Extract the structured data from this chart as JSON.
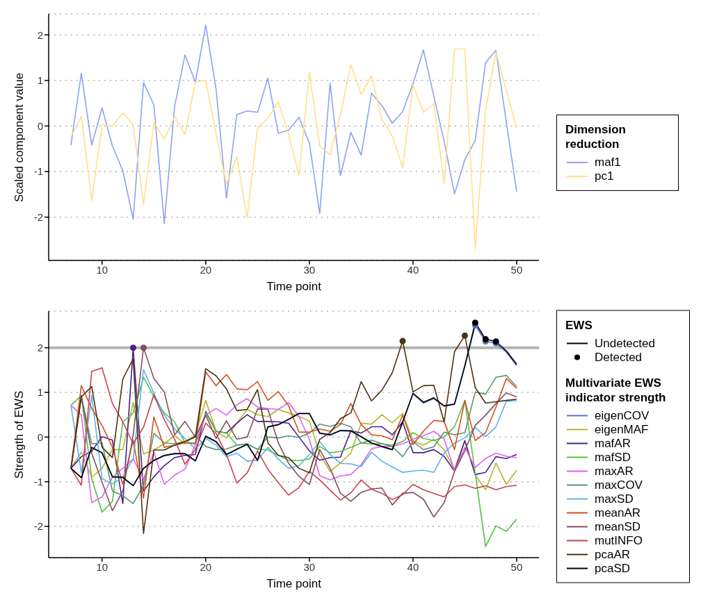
{
  "chart_data": [
    {
      "type": "line",
      "xlabel": "Time point",
      "ylabel": "Scaled component value",
      "legend_title": "Dimension reduction",
      "legend": "right",
      "grid": "y",
      "line_style": "solid",
      "x": [
        7,
        8,
        9,
        10,
        11,
        12,
        13,
        14,
        15,
        16,
        17,
        18,
        19,
        20,
        21,
        22,
        23,
        24,
        25,
        26,
        27,
        28,
        29,
        30,
        31,
        32,
        33,
        34,
        35,
        36,
        37,
        38,
        39,
        40,
        41,
        42,
        43,
        44,
        45,
        46,
        47,
        48,
        49,
        50
      ],
      "xlim": [
        4.85,
        52.15
      ],
      "xticks": [
        10,
        20,
        30,
        40,
        50
      ],
      "ylim": [
        -2.95,
        2.46
      ],
      "yticks": [
        -2,
        -1,
        0,
        1,
        2
      ],
      "series": [
        {
          "name": "maf1",
          "color": "#8da0f5",
          "values": [
            -0.42,
            1.16,
            -0.42,
            0.4,
            -0.44,
            -0.98,
            -2.05,
            0.95,
            0.46,
            -2.14,
            0.43,
            1.56,
            0.96,
            2.21,
            0.81,
            -1.58,
            0.25,
            0.33,
            0.3,
            1.05,
            -0.16,
            -0.09,
            0.19,
            -0.37,
            -1.92,
            0.94,
            -1.09,
            -0.14,
            -0.64,
            0.72,
            0.45,
            0.06,
            0.32,
            0.93,
            1.67,
            0.66,
            -0.33,
            -1.49,
            -0.74,
            -0.32,
            1.39,
            1.66,
            0.08,
            -1.44
          ]
        },
        {
          "name": "pc1",
          "color": "#ffe08a",
          "values": [
            -0.24,
            0.21,
            -1.64,
            0.03,
            0.0,
            0.29,
            0.03,
            -1.72,
            0.08,
            -0.29,
            0.21,
            -0.18,
            0.97,
            1.0,
            -0.18,
            -1.28,
            -0.67,
            -2.02,
            -0.04,
            0.17,
            0.53,
            -0.18,
            -1.09,
            1.17,
            -0.44,
            -0.63,
            0.25,
            1.35,
            0.69,
            1.1,
            0.14,
            -0.22,
            -0.91,
            0.91,
            0.3,
            0.49,
            -1.26,
            1.69,
            1.69,
            -2.7,
            0.34,
            1.62,
            0.78,
            -0.05
          ]
        }
      ]
    },
    {
      "type": "line",
      "xlabel": "Time point",
      "ylabel": "Strength of EWS",
      "legend_title": "Multivariate EWS indicator strength",
      "legend": "right",
      "grid": "y",
      "line_style": "solid",
      "annotations": [
        "EWS",
        "Undetected"
      ],
      "ref_lines": [
        {
          "axis": "y",
          "value": 2,
          "color": "#b3b3b3"
        }
      ],
      "x": [
        7,
        8,
        9,
        10,
        11,
        12,
        13,
        14,
        15,
        16,
        17,
        18,
        19,
        20,
        21,
        22,
        23,
        24,
        25,
        26,
        27,
        28,
        29,
        30,
        31,
        32,
        33,
        34,
        35,
        36,
        37,
        38,
        39,
        40,
        41,
        42,
        43,
        44,
        45,
        46,
        47,
        48,
        49,
        50
      ],
      "xlim": [
        4.85,
        52.15
      ],
      "xticks": [
        10,
        20,
        30,
        40,
        50
      ],
      "ylim": [
        -2.7,
        2.82
      ],
      "yticks": [
        -2,
        -1,
        0,
        1,
        2
      ],
      "series": [
        {
          "name": "eigenCOV",
          "color": "#5a72c8",
          "values": [
            -0.7,
            -0.91,
            -0.24,
            -0.36,
            -0.89,
            -0.91,
            -1.09,
            -0.71,
            -0.53,
            -0.42,
            -0.38,
            -0.38,
            -0.54,
            0.01,
            -0.11,
            -0.4,
            -0.28,
            -0.17,
            -0.53,
            0.22,
            0.27,
            0.39,
            0.52,
            0.52,
            0.08,
            0.04,
            0.14,
            0.13,
            0.0,
            -0.14,
            -0.22,
            -0.29,
            0.33,
            0.97,
            0.76,
            0.86,
            0.69,
            0.73,
            1.58,
            2.5,
            2.14,
            2.1,
            1.9,
            1.6
          ]
        },
        {
          "name": "eigenMAF",
          "color": "#b5b52a",
          "values": [
            -0.7,
            -0.34,
            -0.9,
            -0.7,
            -0.28,
            -0.28,
            0.77,
            -0.38,
            -0.29,
            -0.15,
            0.03,
            -0.15,
            0.05,
            0.82,
            0.13,
            -0.02,
            0.31,
            0.62,
            0.5,
            0.46,
            0.62,
            0.54,
            0.46,
            0.36,
            -0.39,
            -0.77,
            -0.58,
            -0.36,
            0.31,
            0.29,
            0.5,
            0.32,
            0.53,
            -0.08,
            -0.18,
            -0.05,
            -0.29,
            -0.72,
            -0.08,
            -0.85,
            -1.18,
            -0.58,
            -1.06,
            -0.74
          ]
        },
        {
          "name": "mafAR",
          "color": "#4a1e8c",
          "values": [
            -0.7,
            -0.44,
            -0.32,
            0.01,
            -0.07,
            -1.49,
            2.0,
            -1.21,
            -0.89,
            -0.64,
            -0.46,
            -0.41,
            -0.39,
            0.57,
            0.13,
            0.09,
            0.31,
            0.5,
            0.35,
            0.35,
            0.34,
            0.31,
            0.0,
            -0.31,
            -0.52,
            -0.46,
            -0.45,
            0.14,
            0.09,
            0.23,
            0.23,
            0.05,
            0.34,
            -0.35,
            -0.35,
            -0.28,
            -0.43,
            -0.76,
            -0.08,
            -0.84,
            -0.79,
            -0.44,
            -0.48,
            -0.39
          ]
        },
        {
          "name": "mafSD",
          "color": "#55c040",
          "values": [
            0.71,
            0.93,
            -0.93,
            -1.68,
            -1.44,
            0.34,
            0.54,
            1.34,
            0.9,
            0.54,
            0.34,
            -0.13,
            -0.13,
            0.54,
            0.13,
            0.1,
            -0.18,
            -0.16,
            -0.27,
            -0.29,
            -0.41,
            -0.52,
            -0.53,
            -0.49,
            -0.21,
            -0.35,
            -0.32,
            -0.23,
            -0.13,
            -0.16,
            -0.15,
            -0.18,
            -0.1,
            0.1,
            -0.03,
            -0.08,
            0.0,
            0.23,
            0.82,
            -0.81,
            -2.45,
            -1.99,
            -2.11,
            -1.84
          ]
        },
        {
          "name": "maxAR",
          "color": "#e060f0",
          "values": [
            0.71,
            0.49,
            -1.47,
            -1.34,
            -0.9,
            -0.7,
            -0.49,
            -0.94,
            -0.34,
            -1.06,
            -0.85,
            -0.72,
            -0.18,
            0.49,
            0.64,
            0.49,
            0.72,
            0.86,
            0.67,
            0.64,
            0.62,
            0.77,
            0.46,
            -0.05,
            -0.87,
            -0.96,
            -0.87,
            -0.84,
            -0.62,
            -0.26,
            -0.21,
            -0.21,
            -0.15,
            -0.05,
            0.03,
            0.13,
            -0.04,
            -0.75,
            -0.23,
            -0.68,
            -0.48,
            -0.36,
            -0.43,
            -0.46
          ]
        },
        {
          "name": "maxCOV",
          "color": "#5a9670",
          "values": [
            -0.7,
            0.9,
            -0.15,
            -0.13,
            -1.21,
            -1.31,
            -1.49,
            -1.08,
            0.08,
            -0.13,
            -0.15,
            -0.1,
            0.03,
            -0.21,
            -0.28,
            -0.27,
            -0.18,
            -0.15,
            -0.28,
            0.0,
            -0.02,
            0.03,
            -0.01,
            0.09,
            0.29,
            0.24,
            0.31,
            0.23,
            -0.14,
            -0.07,
            -0.15,
            -0.21,
            -0.44,
            -0.1,
            -0.28,
            -0.22,
            0.11,
            0.05,
            0.1,
            1.01,
            0.96,
            1.34,
            1.38,
            1.13
          ]
        },
        {
          "name": "maxSD",
          "color": "#5ab4ea",
          "values": [
            0.71,
            -0.8,
            0.93,
            -0.93,
            -1.05,
            -0.89,
            -0.49,
            1.51,
            0.98,
            0.49,
            0.18,
            -0.03,
            -0.27,
            -0.03,
            -0.18,
            -0.44,
            -0.36,
            -0.54,
            -0.52,
            -0.23,
            -0.49,
            -0.7,
            -0.64,
            -0.39,
            -0.1,
            -0.39,
            -0.59,
            -0.6,
            -0.66,
            -0.34,
            -0.54,
            -0.67,
            -0.79,
            -0.76,
            -0.74,
            -0.79,
            -0.36,
            -0.13,
            -0.02,
            0.21,
            0.01,
            0.23,
            0.8,
            0.82
          ]
        },
        {
          "name": "meanAR",
          "color": "#d45020",
          "values": [
            -0.7,
            1.15,
            0.64,
            0.26,
            -0.23,
            -1.06,
            -0.07,
            -1.37,
            0.45,
            -0.23,
            -0.18,
            -0.13,
            -0.15,
            1.46,
            1.15,
            1.4,
            1.08,
            1.06,
            1.24,
            0.82,
            1.02,
            0.7,
            0.11,
            0.11,
            0.18,
            0.13,
            0.28,
            0.75,
            0.28,
            0.05,
            0.03,
            -0.06,
            0.49,
            -0.17,
            0.13,
            0.37,
            0.35,
            -0.28,
            0.82,
            -0.08,
            0.1,
            0.67,
            1.31,
            1.09
          ]
        },
        {
          "name": "meanSD",
          "color": "#80505c",
          "values": [
            -0.7,
            0.93,
            -0.36,
            -1.01,
            -1.65,
            -1.21,
            0.03,
            2.0,
            1.31,
            1.01,
            0.05,
            0.35,
            0.0,
            0.49,
            -0.03,
            0.36,
            -0.05,
            0.0,
            0.63,
            0.62,
            -0.13,
            -0.59,
            -0.88,
            -1.06,
            -0.28,
            -0.7,
            -1.26,
            -1.44,
            -1.24,
            -1.16,
            -1.14,
            -1.52,
            -1.26,
            -1.24,
            -1.39,
            -1.79,
            -1.47,
            -0.77,
            -0.31,
            0.26,
            0.49,
            0.75,
            0.99,
            0.9
          ]
        },
        {
          "name": "mutINFO",
          "color": "#c84050",
          "values": [
            -0.7,
            -1.08,
            1.47,
            1.55,
            0.75,
            0.34,
            -0.15,
            0.22,
            0.95,
            0.39,
            -0.05,
            -0.61,
            -0.28,
            0.31,
            0.08,
            -0.39,
            -1.03,
            -0.8,
            -0.31,
            -0.72,
            -1.02,
            -1.3,
            -1.13,
            -0.77,
            -0.96,
            -1.19,
            -1.41,
            -1.25,
            -0.96,
            -1.17,
            -1.26,
            -1.4,
            -1.29,
            -1.06,
            -1.18,
            -1.26,
            -1.34,
            -1.11,
            -1.07,
            -1.15,
            -1.09,
            -1.18,
            -1.11,
            -1.08
          ]
        },
        {
          "name": "pcaAR",
          "color": "#4a3212",
          "values": [
            -0.7,
            0.9,
            1.13,
            -0.23,
            -0.46,
            1.3,
            1.75,
            -2.16,
            -0.29,
            -0.29,
            -0.18,
            -0.1,
            0.0,
            1.53,
            1.37,
            1.08,
            0.59,
            0.62,
            1.06,
            -0.13,
            -0.41,
            -0.46,
            -0.7,
            -0.8,
            -0.05,
            0.1,
            0.41,
            0.54,
            1.24,
            0.81,
            1.05,
            1.44,
            2.15,
            1.01,
            1.15,
            1.16,
            0.34,
            1.91,
            2.27,
            1.11,
            0.76,
            0.79,
            0.82,
            0.85
          ]
        },
        {
          "name": "pcaSD",
          "color": "#000000",
          "values": [
            -0.7,
            -0.91,
            -0.23,
            -0.35,
            -0.89,
            -0.9,
            -1.09,
            -0.7,
            -0.52,
            -0.41,
            -0.37,
            -0.37,
            -0.53,
            0.02,
            -0.1,
            -0.39,
            -0.27,
            -0.16,
            -0.52,
            0.23,
            0.28,
            0.4,
            0.53,
            0.53,
            0.09,
            0.05,
            0.15,
            0.14,
            0.01,
            -0.13,
            -0.21,
            -0.28,
            0.34,
            0.98,
            0.78,
            0.88,
            0.7,
            0.74,
            1.6,
            2.56,
            2.19,
            2.14,
            1.93,
            1.63
          ]
        },
        {
          "name": "Detected",
          "type": "scatter",
          "color": "#000000",
          "x": [
            13,
            14,
            39,
            45,
            46,
            47,
            48,
            46,
            47,
            48
          ],
          "values": [
            2.0,
            2.0,
            2.15,
            2.27,
            2.5,
            2.14,
            2.1,
            2.56,
            2.19,
            2.14
          ],
          "colors": [
            "#4a1e8c",
            "#80505c",
            "#4a3212",
            "#4a3212",
            "#5a72c8",
            "#5a72c8",
            "#5a72c8",
            "#000000",
            "#000000",
            "#000000"
          ]
        }
      ]
    }
  ]
}
